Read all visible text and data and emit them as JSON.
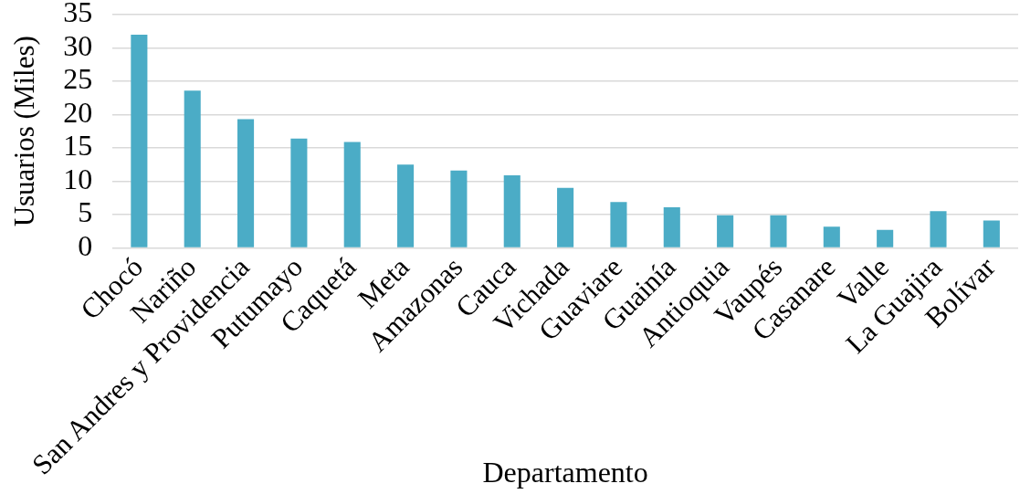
{
  "chart_data": {
    "type": "bar",
    "xlabel": "Departamento",
    "ylabel": "Usuarios (Miles)",
    "categories": [
      "Chocó",
      "Nariño",
      "San Andres y Providencia",
      "Putumayo",
      "Caquetá",
      "Meta",
      "Amazonas",
      "Cauca",
      "Vichada",
      "Guaviare",
      "Guainía",
      "Antioquia",
      "Vaupés",
      "Casanare",
      "Valle",
      "La Guajira",
      "Bolívar"
    ],
    "values": [
      32,
      23.6,
      19.3,
      16.4,
      15.9,
      12.5,
      11.6,
      10.9,
      9,
      6.9,
      6.1,
      4.9,
      4.9,
      3.2,
      2.7,
      5.5,
      4.1
    ],
    "color": "#4bacc6",
    "ylim": [
      0,
      35
    ],
    "yticks": [
      0,
      5,
      10,
      15,
      20,
      25,
      30,
      35
    ],
    "grid": "y"
  }
}
